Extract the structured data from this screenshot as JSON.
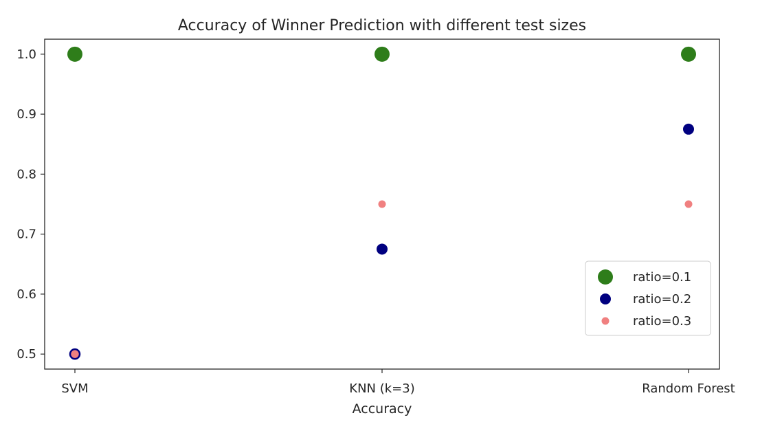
{
  "chart_data": {
    "type": "scatter",
    "title": "Accuracy of Winner Prediction with different test sizes",
    "xlabel": "Accuracy",
    "ylabel": "",
    "categories": [
      "SVM",
      "KNN (k=3)",
      "Random Forest"
    ],
    "yticks": [
      "0.5",
      "0.6",
      "0.7",
      "0.8",
      "0.9",
      "1.0"
    ],
    "ylim": [
      0.475,
      1.025
    ],
    "grid": false,
    "legend_position": "lower-right",
    "series": [
      {
        "name": "ratio=0.1",
        "values": [
          1.0,
          1.0,
          1.0
        ],
        "color": "#2e7d1a"
      },
      {
        "name": "ratio=0.2",
        "values": [
          0.5,
          0.675,
          0.875
        ],
        "color": "#000080"
      },
      {
        "name": "ratio=0.3",
        "values": [
          0.5,
          0.75,
          0.75
        ],
        "color": "#f08080"
      }
    ]
  }
}
